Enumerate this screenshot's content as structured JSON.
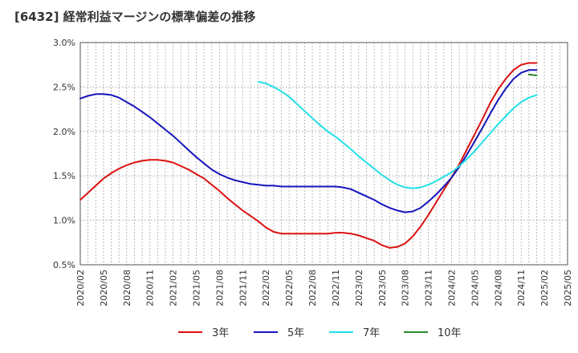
{
  "chart_data": {
    "type": "line",
    "title": "[6432]  経常利益マージンの標準偏差の推移",
    "xlabel": "",
    "ylabel": "",
    "ylim": [
      0.005,
      0.03
    ],
    "y_ticks": [
      {
        "value": 0.03,
        "label": "3.0%"
      },
      {
        "value": 0.025,
        "label": "2.5%"
      },
      {
        "value": 0.02,
        "label": "2.0%"
      },
      {
        "value": 0.015,
        "label": "1.5%"
      },
      {
        "value": 0.01,
        "label": "1.0%"
      },
      {
        "value": 0.005,
        "label": "0.5%"
      }
    ],
    "x_range": [
      "2020/02",
      "2025/05"
    ],
    "x_ticks": [
      "2020/02",
      "2020/05",
      "2020/08",
      "2020/11",
      "2021/02",
      "2021/05",
      "2021/08",
      "2021/11",
      "2022/02",
      "2022/05",
      "2022/08",
      "2022/11",
      "2023/02",
      "2023/05",
      "2023/08",
      "2023/11",
      "2024/02",
      "2024/05",
      "2024/08",
      "2024/11",
      "2025/02",
      "2025/05"
    ],
    "grid": true,
    "legend_position": "bottom",
    "series": [
      {
        "name": "3年",
        "color": "#dd1111",
        "points": [
          [
            "2020/02",
            0.0123
          ],
          [
            "2020/03",
            0.0131
          ],
          [
            "2020/04",
            0.0139
          ],
          [
            "2020/05",
            0.0147
          ],
          [
            "2020/06",
            0.0153
          ],
          [
            "2020/07",
            0.0158
          ],
          [
            "2020/08",
            0.0162
          ],
          [
            "2020/09",
            0.0165
          ],
          [
            "2020/10",
            0.0167
          ],
          [
            "2020/11",
            0.0168
          ],
          [
            "2020/12",
            0.0168
          ],
          [
            "2021/01",
            0.0167
          ],
          [
            "2021/02",
            0.0165
          ],
          [
            "2021/03",
            0.0161
          ],
          [
            "2021/04",
            0.0157
          ],
          [
            "2021/05",
            0.0152
          ],
          [
            "2021/06",
            0.0147
          ],
          [
            "2021/07",
            0.014
          ],
          [
            "2021/08",
            0.0133
          ],
          [
            "2021/09",
            0.0125
          ],
          [
            "2021/10",
            0.0118
          ],
          [
            "2021/11",
            0.0111
          ],
          [
            "2021/12",
            0.0105
          ],
          [
            "2022/01",
            0.0099
          ],
          [
            "2022/02",
            0.0092
          ],
          [
            "2022/03",
            0.0087
          ],
          [
            "2022/04",
            0.0085
          ],
          [
            "2022/05",
            0.0085
          ],
          [
            "2022/06",
            0.0085
          ],
          [
            "2022/07",
            0.0085
          ],
          [
            "2022/08",
            0.0085
          ],
          [
            "2022/09",
            0.0085
          ],
          [
            "2022/10",
            0.0085
          ],
          [
            "2022/11",
            0.0086
          ],
          [
            "2022/12",
            0.0086
          ],
          [
            "2023/01",
            0.0085
          ],
          [
            "2023/02",
            0.0083
          ],
          [
            "2023/03",
            0.008
          ],
          [
            "2023/04",
            0.0077
          ],
          [
            "2023/05",
            0.0072
          ],
          [
            "2023/06",
            0.0069
          ],
          [
            "2023/07",
            0.007
          ],
          [
            "2023/08",
            0.0074
          ],
          [
            "2023/09",
            0.0082
          ],
          [
            "2023/10",
            0.0093
          ],
          [
            "2023/11",
            0.0106
          ],
          [
            "2023/12",
            0.012
          ],
          [
            "2024/01",
            0.0134
          ],
          [
            "2024/02",
            0.0148
          ],
          [
            "2024/03",
            0.0163
          ],
          [
            "2024/04",
            0.018
          ],
          [
            "2024/05",
            0.0197
          ],
          [
            "2024/06",
            0.0214
          ],
          [
            "2024/07",
            0.0232
          ],
          [
            "2024/08",
            0.0247
          ],
          [
            "2024/09",
            0.0259
          ],
          [
            "2024/10",
            0.0269
          ],
          [
            "2024/11",
            0.0275
          ],
          [
            "2024/12",
            0.0277
          ],
          [
            "2025/01",
            0.0277
          ]
        ]
      },
      {
        "name": "5年",
        "color": "#1515bb",
        "points": [
          [
            "2020/02",
            0.0237
          ],
          [
            "2020/03",
            0.024
          ],
          [
            "2020/04",
            0.0242
          ],
          [
            "2020/05",
            0.0242
          ],
          [
            "2020/06",
            0.0241
          ],
          [
            "2020/07",
            0.0238
          ],
          [
            "2020/08",
            0.0233
          ],
          [
            "2020/09",
            0.0228
          ],
          [
            "2020/10",
            0.0222
          ],
          [
            "2020/11",
            0.0216
          ],
          [
            "2020/12",
            0.0209
          ],
          [
            "2021/01",
            0.0202
          ],
          [
            "2021/02",
            0.0195
          ],
          [
            "2021/03",
            0.0187
          ],
          [
            "2021/04",
            0.0179
          ],
          [
            "2021/05",
            0.0171
          ],
          [
            "2021/06",
            0.0164
          ],
          [
            "2021/07",
            0.0157
          ],
          [
            "2021/08",
            0.0152
          ],
          [
            "2021/09",
            0.0148
          ],
          [
            "2021/10",
            0.0145
          ],
          [
            "2021/11",
            0.0143
          ],
          [
            "2021/12",
            0.0141
          ],
          [
            "2022/01",
            0.014
          ],
          [
            "2022/02",
            0.0139
          ],
          [
            "2022/03",
            0.0139
          ],
          [
            "2022/04",
            0.0138
          ],
          [
            "2022/05",
            0.0138
          ],
          [
            "2022/06",
            0.0138
          ],
          [
            "2022/07",
            0.0138
          ],
          [
            "2022/08",
            0.0138
          ],
          [
            "2022/09",
            0.0138
          ],
          [
            "2022/10",
            0.0138
          ],
          [
            "2022/11",
            0.0138
          ],
          [
            "2022/12",
            0.0137
          ],
          [
            "2023/01",
            0.0135
          ],
          [
            "2023/02",
            0.0131
          ],
          [
            "2023/03",
            0.0127
          ],
          [
            "2023/04",
            0.0123
          ],
          [
            "2023/05",
            0.0118
          ],
          [
            "2023/06",
            0.0114
          ],
          [
            "2023/07",
            0.0111
          ],
          [
            "2023/08",
            0.0109
          ],
          [
            "2023/09",
            0.011
          ],
          [
            "2023/10",
            0.0114
          ],
          [
            "2023/11",
            0.0121
          ],
          [
            "2023/12",
            0.0129
          ],
          [
            "2024/01",
            0.0138
          ],
          [
            "2024/02",
            0.0148
          ],
          [
            "2024/03",
            0.016
          ],
          [
            "2024/04",
            0.0174
          ],
          [
            "2024/05",
            0.0189
          ],
          [
            "2024/06",
            0.0204
          ],
          [
            "2024/07",
            0.022
          ],
          [
            "2024/08",
            0.0235
          ],
          [
            "2024/09",
            0.0248
          ],
          [
            "2024/10",
            0.0259
          ],
          [
            "2024/11",
            0.0266
          ],
          [
            "2024/12",
            0.0269
          ],
          [
            "2025/01",
            0.0269
          ]
        ]
      },
      {
        "name": "7年",
        "color": "#22e0e8",
        "points": [
          [
            "2022/01",
            0.0256
          ],
          [
            "2022/02",
            0.0254
          ],
          [
            "2022/03",
            0.025
          ],
          [
            "2022/04",
            0.0245
          ],
          [
            "2022/05",
            0.0239
          ],
          [
            "2022/06",
            0.0231
          ],
          [
            "2022/07",
            0.0223
          ],
          [
            "2022/08",
            0.0215
          ],
          [
            "2022/09",
            0.0207
          ],
          [
            "2022/10",
            0.02
          ],
          [
            "2022/11",
            0.0194
          ],
          [
            "2022/12",
            0.0187
          ],
          [
            "2023/01",
            0.018
          ],
          [
            "2023/02",
            0.0172
          ],
          [
            "2023/03",
            0.0165
          ],
          [
            "2023/04",
            0.0158
          ],
          [
            "2023/05",
            0.0151
          ],
          [
            "2023/06",
            0.0145
          ],
          [
            "2023/07",
            0.014
          ],
          [
            "2023/08",
            0.0137
          ],
          [
            "2023/09",
            0.0136
          ],
          [
            "2023/10",
            0.0137
          ],
          [
            "2023/11",
            0.014
          ],
          [
            "2023/12",
            0.0144
          ],
          [
            "2024/01",
            0.0149
          ],
          [
            "2024/02",
            0.0154
          ],
          [
            "2024/03",
            0.0161
          ],
          [
            "2024/04",
            0.0169
          ],
          [
            "2024/05",
            0.0178
          ],
          [
            "2024/06",
            0.0188
          ],
          [
            "2024/07",
            0.0198
          ],
          [
            "2024/08",
            0.0208
          ],
          [
            "2024/09",
            0.0217
          ],
          [
            "2024/10",
            0.0226
          ],
          [
            "2024/11",
            0.0233
          ],
          [
            "2024/12",
            0.0238
          ],
          [
            "2025/01",
            0.0241
          ]
        ]
      },
      {
        "name": "10年",
        "color": "#2a8a2a",
        "points": [
          [
            "2024/12",
            0.0264
          ],
          [
            "2025/01",
            0.0263
          ]
        ]
      }
    ]
  }
}
